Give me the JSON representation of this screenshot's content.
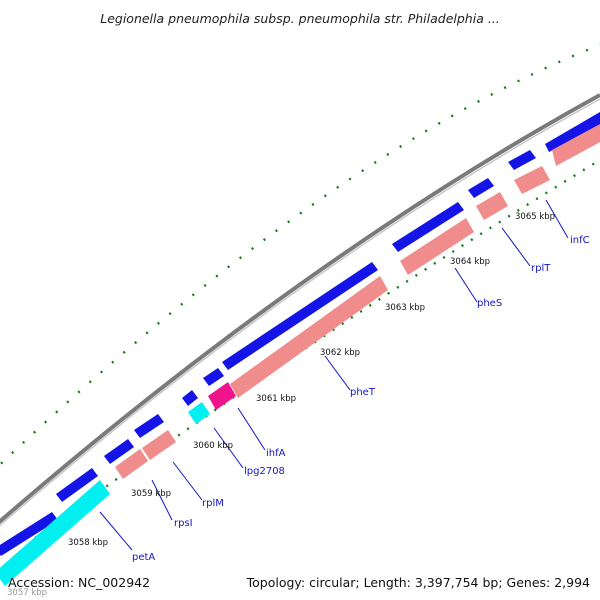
{
  "title": "Legionella pneumophila subsp. pneumophila str. Philadelphia ...",
  "accession_label": "Accession: NC_002942",
  "topology_label": "Topology: circular; Length: 3,397,754 bp; Genes: 2,994",
  "colors": {
    "backbone": "#7a7a7a",
    "cds_forward": "#1414e6",
    "cds_reverse": "#f08c8c",
    "trna": "#00f0f0",
    "rrna_other": "#f0148c",
    "tick": "#1a7a1a",
    "label": "#1414c8"
  },
  "ticks": [
    {
      "label": "3058 kbp"
    },
    {
      "label": "3059 kbp"
    },
    {
      "label": "3060 kbp"
    },
    {
      "label": "3061 kbp"
    },
    {
      "label": "3062 kbp"
    },
    {
      "label": "3063 kbp"
    },
    {
      "label": "3064 kbp"
    },
    {
      "label": "3065 kbp"
    }
  ],
  "partial_tick_label": "3057 kbp",
  "gene_labels": [
    {
      "name": "petA"
    },
    {
      "name": "rpsI"
    },
    {
      "name": "rplM"
    },
    {
      "name": "lpg2708"
    },
    {
      "name": "ihfA"
    },
    {
      "name": "pheT"
    },
    {
      "name": "pheS"
    },
    {
      "name": "rplT"
    },
    {
      "name": "infC"
    }
  ]
}
